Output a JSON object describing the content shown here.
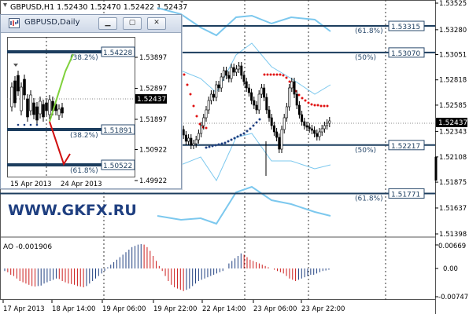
{
  "main_chart": {
    "header": "GBPUSD,H1  1.52430 1.52470 1.52422 1.52437",
    "price_labels": [
      "1.53525",
      "1.53280",
      "1.53051",
      "1.52818",
      "1.52585",
      "1.52343",
      "1.52108",
      "1.51875",
      "1.51637",
      "1.51398"
    ],
    "current_price": "1.52437",
    "fib_levels": [
      {
        "label": "(61.8%)",
        "price": "1.53315"
      },
      {
        "label": "(50%)",
        "price": "1.53070"
      },
      {
        "label": "(50%)",
        "price": "1.52217"
      },
      {
        "label": "(61.8%)",
        "price": "1.51771"
      }
    ],
    "date_labels": [
      "17 Apr 2013",
      "18 Apr 14:00",
      "19 Apr 06:00",
      "19 Apr 22:00",
      "22 Apr 14:00",
      "23 Apr 06:00",
      "23 Apr 22:00"
    ],
    "watermark": "WWW.GKFX.RU",
    "colors": {
      "fib": "#1c3d5e",
      "bands": "#7cc8ee",
      "sar_up": "#1f3f80",
      "sar_down": "#e01010",
      "candle": "#000000"
    }
  },
  "ao_panel": {
    "label": "AO -0.001906",
    "scale_labels": [
      "0.00669",
      "0.00",
      "-0.00747"
    ],
    "colors": {
      "up": "#1f3f80",
      "down": "#cc1c1c"
    }
  },
  "subwindow": {
    "title": "GBPUSD,Daily",
    "price_labels": [
      "1.53897",
      "1.52897",
      "1.51897",
      "1.50922",
      "1.49922"
    ],
    "current_price": "1.52437",
    "fib_levels": [
      {
        "label": "(38.2%)",
        "price": "1.54228"
      },
      {
        "label": "(38.2%)",
        "price": "1.51891"
      },
      {
        "label": "(61.8%)",
        "price": "1.50522"
      }
    ],
    "date_labels": [
      "15 Apr 2013",
      "24 Apr 2013"
    ],
    "buttons": {
      "minimize": "▁",
      "restore": "▢",
      "close": "✕"
    }
  }
}
